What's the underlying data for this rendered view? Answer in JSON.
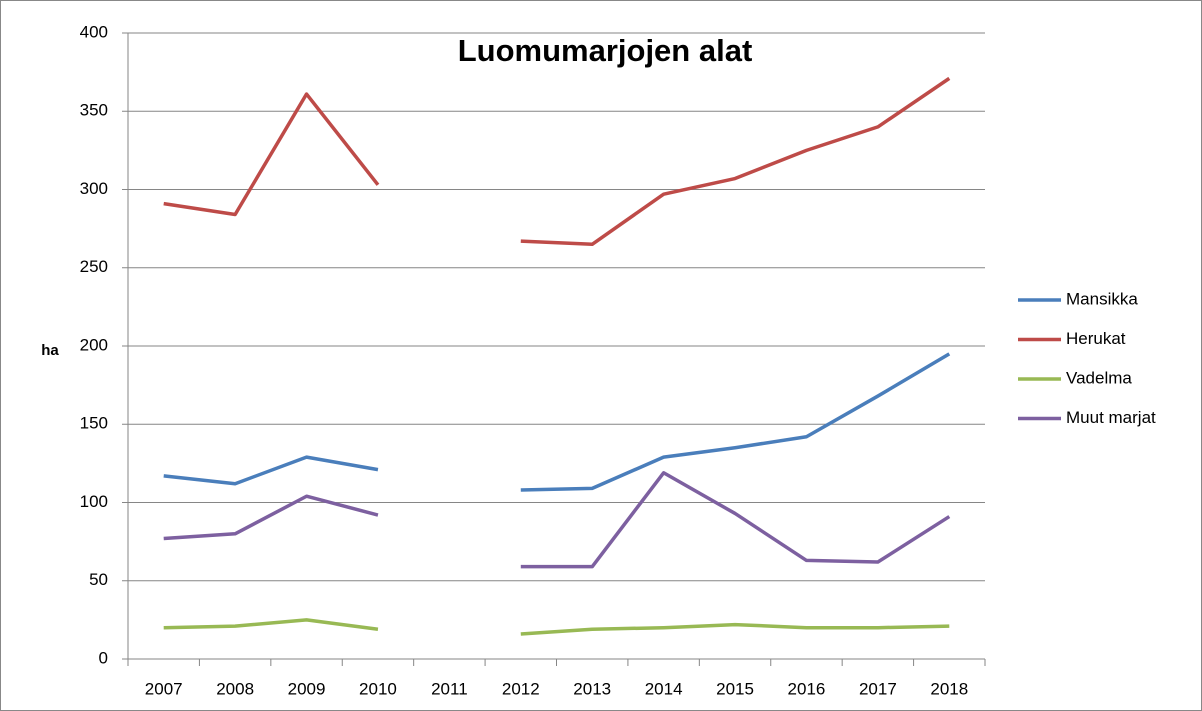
{
  "chart_data": {
    "type": "line",
    "title": "Luomumarjojen alat",
    "y_label": "ha",
    "categories": [
      "2007",
      "2008",
      "2009",
      "2010",
      "2011",
      "2012",
      "2013",
      "2014",
      "2015",
      "2016",
      "2017",
      "2018"
    ],
    "series": [
      {
        "name": "Mansikka",
        "color": "#4a7ebb",
        "values": [
          117,
          112,
          129,
          121,
          null,
          108,
          109,
          129,
          135,
          142,
          168,
          195
        ]
      },
      {
        "name": "Herukat",
        "color": "#be4b48",
        "values": [
          291,
          284,
          361,
          303,
          null,
          267,
          265,
          297,
          307,
          325,
          340,
          371
        ]
      },
      {
        "name": "Vadelma",
        "color": "#98b954",
        "values": [
          20,
          21,
          25,
          19,
          null,
          16,
          19,
          20,
          22,
          20,
          20,
          21
        ]
      },
      {
        "name": "Muut marjat",
        "color": "#7d60a0",
        "values": [
          77,
          80,
          104,
          92,
          null,
          59,
          59,
          119,
          93,
          63,
          62,
          91
        ]
      }
    ],
    "ylim": [
      0,
      400
    ],
    "yticks": [
      0,
      50,
      100,
      150,
      200,
      250,
      300,
      350,
      400
    ],
    "grid": true,
    "legend": "right"
  }
}
